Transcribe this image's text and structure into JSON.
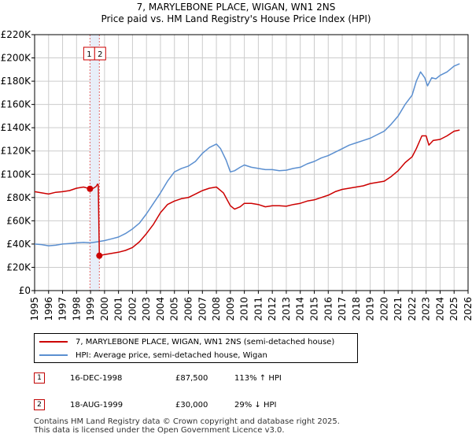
{
  "title_line1": "7, MARYLEBONE PLACE, WIGAN, WN1 2NS",
  "title_line2": "Price paid vs. HM Land Registry's House Price Index (HPI)",
  "colors": {
    "property": "#cc0000",
    "hpi": "#5b8fd0",
    "marker_band": "#e8eef8",
    "vline": "#e06666"
  },
  "chart_data": {
    "type": "line",
    "xlim": [
      1995,
      2026
    ],
    "ylim": [
      0,
      220000
    ],
    "x_ticks": [
      1995,
      1996,
      1997,
      1998,
      1999,
      2000,
      2001,
      2002,
      2003,
      2004,
      2005,
      2006,
      2007,
      2008,
      2009,
      2010,
      2011,
      2012,
      2013,
      2014,
      2015,
      2016,
      2017,
      2018,
      2019,
      2020,
      2021,
      2022,
      2023,
      2024,
      2025,
      2026
    ],
    "y_ticks": [
      0,
      20000,
      40000,
      60000,
      80000,
      100000,
      120000,
      140000,
      160000,
      180000,
      200000,
      220000
    ],
    "y_tick_labels": [
      "£0",
      "£20K",
      "£40K",
      "£60K",
      "£80K",
      "£100K",
      "£120K",
      "£140K",
      "£160K",
      "£180K",
      "£200K",
      "£220K"
    ],
    "series": [
      {
        "name": "7, MARYLEBONE PLACE, WIGAN, WN1 2NS (semi-detached house)",
        "points": [
          [
            1995,
            85000
          ],
          [
            1995.5,
            84000
          ],
          [
            1996,
            83000
          ],
          [
            1996.5,
            84500
          ],
          [
            1997,
            85000
          ],
          [
            1997.5,
            86000
          ],
          [
            1998,
            88000
          ],
          [
            1998.5,
            89000
          ],
          [
            1998.96,
            87500
          ],
          [
            1999.2,
            88000
          ],
          [
            1999.4,
            89500
          ],
          [
            1999.5,
            91500
          ],
          [
            1999.55,
            91000
          ],
          [
            1999.63,
            30000
          ],
          [
            2000,
            31000
          ],
          [
            2000.5,
            32000
          ],
          [
            2001,
            33000
          ],
          [
            2001.5,
            34500
          ],
          [
            2002,
            37000
          ],
          [
            2002.5,
            42000
          ],
          [
            2003,
            49000
          ],
          [
            2003.5,
            57000
          ],
          [
            2004,
            67000
          ],
          [
            2004.5,
            74000
          ],
          [
            2005,
            77000
          ],
          [
            2005.5,
            79000
          ],
          [
            2006,
            80000
          ],
          [
            2006.5,
            83000
          ],
          [
            2007,
            86000
          ],
          [
            2007.5,
            88000
          ],
          [
            2008,
            89000
          ],
          [
            2008.5,
            84000
          ],
          [
            2009,
            73000
          ],
          [
            2009.3,
            70000
          ],
          [
            2009.7,
            72000
          ],
          [
            2010,
            75000
          ],
          [
            2010.5,
            75000
          ],
          [
            2011,
            74000
          ],
          [
            2011.5,
            72000
          ],
          [
            2012,
            73000
          ],
          [
            2012.5,
            73000
          ],
          [
            2013,
            72500
          ],
          [
            2013.5,
            74000
          ],
          [
            2014,
            75000
          ],
          [
            2014.5,
            77000
          ],
          [
            2015,
            78000
          ],
          [
            2015.5,
            80000
          ],
          [
            2016,
            82000
          ],
          [
            2016.5,
            85000
          ],
          [
            2017,
            87000
          ],
          [
            2017.5,
            88000
          ],
          [
            2018,
            89000
          ],
          [
            2018.5,
            90000
          ],
          [
            2019,
            92000
          ],
          [
            2019.5,
            93000
          ],
          [
            2020,
            94000
          ],
          [
            2020.5,
            98000
          ],
          [
            2021,
            103000
          ],
          [
            2021.5,
            110000
          ],
          [
            2022,
            115000
          ],
          [
            2022.3,
            122000
          ],
          [
            2022.7,
            133000
          ],
          [
            2023,
            133000
          ],
          [
            2023.2,
            125000
          ],
          [
            2023.5,
            129000
          ],
          [
            2024,
            130000
          ],
          [
            2024.5,
            133000
          ],
          [
            2025,
            137000
          ],
          [
            2025.4,
            138000
          ]
        ]
      },
      {
        "name": "HPI: Average price, semi-detached house, Wigan",
        "points": [
          [
            1995,
            40000
          ],
          [
            1995.5,
            39500
          ],
          [
            1996,
            38500
          ],
          [
            1996.5,
            39000
          ],
          [
            1997,
            40000
          ],
          [
            1997.5,
            40500
          ],
          [
            1998,
            41000
          ],
          [
            1998.5,
            41500
          ],
          [
            1999,
            41000
          ],
          [
            1999.5,
            42000
          ],
          [
            2000,
            43000
          ],
          [
            2000.5,
            44500
          ],
          [
            2001,
            46000
          ],
          [
            2001.5,
            49000
          ],
          [
            2002,
            53000
          ],
          [
            2002.5,
            58000
          ],
          [
            2003,
            66000
          ],
          [
            2003.5,
            75000
          ],
          [
            2004,
            84000
          ],
          [
            2004.5,
            94000
          ],
          [
            2005,
            102000
          ],
          [
            2005.5,
            105000
          ],
          [
            2006,
            107000
          ],
          [
            2006.5,
            111000
          ],
          [
            2007,
            118000
          ],
          [
            2007.5,
            123000
          ],
          [
            2008,
            126000
          ],
          [
            2008.3,
            122000
          ],
          [
            2008.7,
            112000
          ],
          [
            2009,
            102000
          ],
          [
            2009.3,
            103000
          ],
          [
            2009.7,
            106000
          ],
          [
            2010,
            108000
          ],
          [
            2010.5,
            106000
          ],
          [
            2011,
            105000
          ],
          [
            2011.5,
            104000
          ],
          [
            2012,
            104000
          ],
          [
            2012.5,
            103000
          ],
          [
            2013,
            103500
          ],
          [
            2013.5,
            105000
          ],
          [
            2014,
            106000
          ],
          [
            2014.5,
            109000
          ],
          [
            2015,
            111000
          ],
          [
            2015.5,
            114000
          ],
          [
            2016,
            116000
          ],
          [
            2016.5,
            119000
          ],
          [
            2017,
            122000
          ],
          [
            2017.5,
            125000
          ],
          [
            2018,
            127000
          ],
          [
            2018.5,
            129000
          ],
          [
            2019,
            131000
          ],
          [
            2019.5,
            134000
          ],
          [
            2020,
            137000
          ],
          [
            2020.5,
            143000
          ],
          [
            2021,
            150000
          ],
          [
            2021.5,
            160000
          ],
          [
            2022,
            168000
          ],
          [
            2022.3,
            180000
          ],
          [
            2022.6,
            188000
          ],
          [
            2022.9,
            183000
          ],
          [
            2023.1,
            176000
          ],
          [
            2023.4,
            183000
          ],
          [
            2023.7,
            182000
          ],
          [
            2024,
            185000
          ],
          [
            2024.5,
            188000
          ],
          [
            2025,
            193000
          ],
          [
            2025.4,
            195000
          ]
        ]
      }
    ],
    "markers": [
      {
        "label": "1",
        "x": 1998.96,
        "y": 87500
      },
      {
        "label": "2",
        "x": 1999.63,
        "y": 30000
      }
    ]
  },
  "legend": {
    "property_label": "7, MARYLEBONE PLACE, WIGAN, WN1 2NS (semi-detached house)",
    "hpi_label": "HPI: Average price, semi-detached house, Wigan"
  },
  "sales": [
    {
      "num": "1",
      "date": "16-DEC-1998",
      "price": "£87,500",
      "hpi": "113% ↑ HPI"
    },
    {
      "num": "2",
      "date": "18-AUG-1999",
      "price": "£30,000",
      "hpi": "29% ↓ HPI"
    }
  ],
  "footer_line1": "Contains HM Land Registry data © Crown copyright and database right 2025.",
  "footer_line2": "This data is licensed under the Open Government Licence v3.0."
}
